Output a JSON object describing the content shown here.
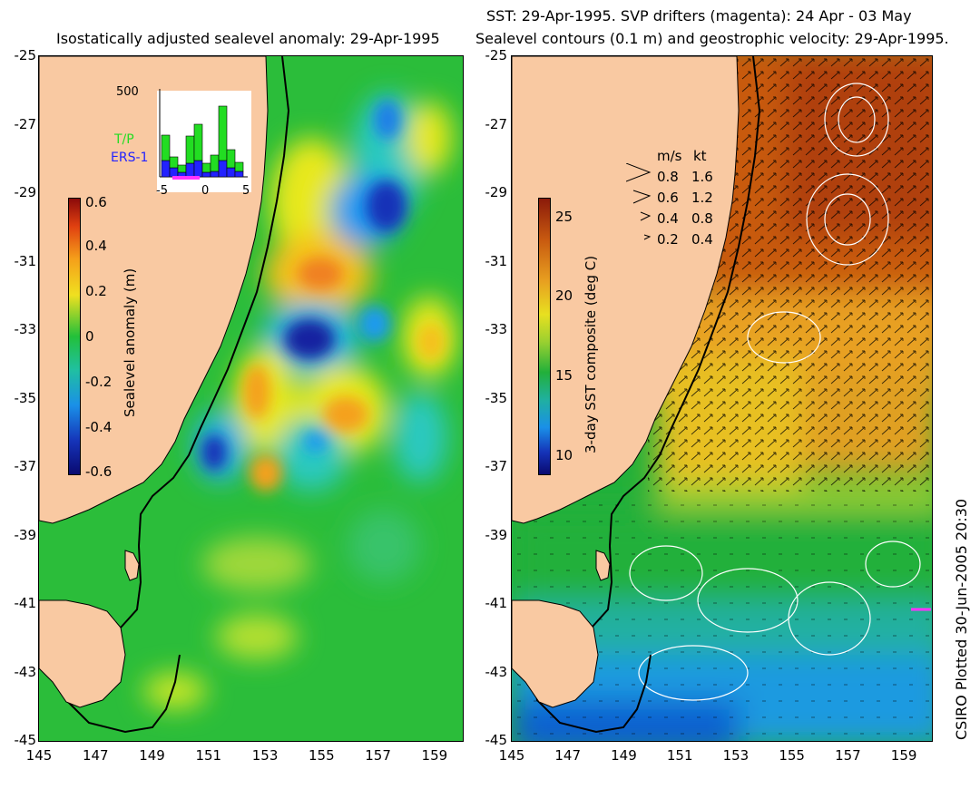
{
  "left_panel": {
    "title": "Isostatically adjusted sealevel anomaly: 29-Apr-1995",
    "colorbar_label": "Sealevel anomaly (m)",
    "colorbar_ticks": [
      "0.6",
      "0.4",
      "0.2",
      "0",
      "-0.2",
      "-0.4",
      "-0.6"
    ],
    "colorbar_range": [
      -0.6,
      0.6
    ],
    "inset": {
      "ymax_label": "500",
      "x_ticks": [
        "-5",
        "0",
        "5"
      ],
      "series": [
        {
          "name": "T/P",
          "color": "#22dd22"
        },
        {
          "name": "ERS-1",
          "color": "#2222ff"
        }
      ]
    }
  },
  "right_panel": {
    "title_line1": "SST: 29-Apr-1995. SVP drifters (magenta): 24 Apr - 03 May",
    "title_line2": "Sealevel contours (0.1 m) and geostrophic velocity: 29-Apr-1995.",
    "colorbar_label": "3-day SST composite (deg C)",
    "colorbar_ticks": [
      "25",
      "20",
      "15",
      "10"
    ],
    "colorbar_range": [
      8.5,
      26
    ],
    "velocity_legend": {
      "header_ms": "m/s",
      "header_kt": "kt",
      "rows": [
        {
          "ms": "0.8",
          "kt": "1.6"
        },
        {
          "ms": "0.6",
          "kt": "1.2"
        },
        {
          "ms": "0.4",
          "kt": "0.8"
        },
        {
          "ms": "0.2",
          "kt": "0.4"
        }
      ]
    }
  },
  "axes": {
    "lat_ticks": [
      "-25",
      "-27",
      "-29",
      "-31",
      "-33",
      "-35",
      "-37",
      "-39",
      "-41",
      "-43",
      "-45"
    ],
    "lon_ticks": [
      "145",
      "147",
      "149",
      "151",
      "153",
      "155",
      "157",
      "159"
    ],
    "lat_range": [
      -45,
      -25
    ],
    "lon_range": [
      145,
      160
    ]
  },
  "credit": "CSIRO Plotted 30-Jun-2005 20:30",
  "colors": {
    "land": "#f9c9a2",
    "sea_default": "#22b83a"
  }
}
